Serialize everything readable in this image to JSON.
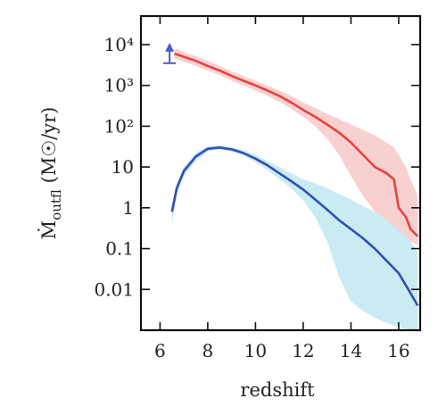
{
  "chart_data": {
    "type": "line",
    "xlabel": "redshift",
    "ylabel_main": "Ṁ",
    "ylabel_sub": "outfl",
    "ylabel_units": "(M☉/yr)",
    "xscale": "linear",
    "yscale": "log",
    "xlim": [
      5.2,
      16.9
    ],
    "ylim": [
      0.001,
      50000
    ],
    "x_ticks": [
      6,
      8,
      10,
      12,
      14,
      16
    ],
    "x_tick_labels": [
      "6",
      "8",
      "10",
      "12",
      "14",
      "16"
    ],
    "y_ticks": [
      0.01,
      0.1,
      1,
      10,
      100,
      1000,
      10000
    ],
    "y_tick_labels": [
      "0.01",
      "0.1",
      "1",
      "10",
      "10²",
      "10³",
      "10⁴"
    ],
    "grid": false,
    "legend": "none",
    "series": [
      {
        "color": "#e8413c",
        "band_color": "#f7c8c8",
        "x": [
          6.6,
          6.8,
          7.0,
          7.5,
          8.0,
          8.5,
          9.0,
          9.5,
          10.0,
          10.5,
          11.0,
          11.5,
          12.0,
          12.5,
          13.0,
          13.5,
          14.0,
          14.5,
          15.0,
          15.5,
          15.8,
          16.0,
          16.3,
          16.5,
          16.8
        ],
        "y": [
          6000,
          5500,
          5000,
          4000,
          3000,
          2300,
          1700,
          1300,
          1000,
          750,
          550,
          380,
          250,
          170,
          110,
          70,
          40,
          20,
          10,
          7,
          5,
          1,
          0.6,
          0.3,
          0.2
        ],
        "band_low": [
          4500,
          4200,
          3800,
          3000,
          2300,
          1800,
          1300,
          1000,
          750,
          550,
          400,
          270,
          170,
          100,
          50,
          20,
          6,
          2,
          0.8,
          0.5,
          0.3,
          0.25,
          0.2,
          0.15,
          0.12
        ],
        "band_high": [
          8000,
          7500,
          6500,
          5200,
          4000,
          3000,
          2200,
          1700,
          1300,
          1000,
          750,
          550,
          380,
          280,
          200,
          150,
          110,
          80,
          60,
          40,
          30,
          20,
          10,
          5,
          2
        ]
      },
      {
        "color": "#2f4fb5",
        "band_color": "#bfe8ee",
        "x": [
          6.5,
          6.7,
          7.0,
          7.5,
          8.0,
          8.5,
          9.0,
          9.5,
          10.0,
          10.5,
          11.0,
          11.5,
          12.0,
          12.5,
          13.0,
          13.5,
          14.0,
          14.5,
          15.0,
          15.5,
          16.0,
          16.5,
          16.8
        ],
        "y": [
          0.8,
          3,
          8,
          18,
          28,
          30,
          27,
          22,
          16,
          11,
          7,
          4.5,
          2.8,
          1.6,
          0.9,
          0.5,
          0.3,
          0.18,
          0.1,
          0.05,
          0.025,
          0.008,
          0.004
        ],
        "band_low": [
          0.4,
          2,
          6,
          14,
          24,
          27,
          24,
          19,
          13,
          8.5,
          5,
          3,
          1.5,
          0.6,
          0.15,
          0.02,
          0.005,
          0.003,
          0.002,
          0.0015,
          0.0012,
          0.001,
          0.001
        ],
        "band_high": [
          1.2,
          4,
          10,
          22,
          32,
          34,
          31,
          26,
          20,
          14,
          10,
          7,
          5,
          4,
          3,
          2.2,
          1.6,
          1.1,
          0.8,
          0.5,
          0.3,
          0.15,
          0.08
        ]
      }
    ],
    "annotations": [
      {
        "type": "lower-limit-marker",
        "x": 6.4,
        "y_low": 3500,
        "y_high": 5500,
        "color": "#4a5cc8"
      }
    ]
  }
}
